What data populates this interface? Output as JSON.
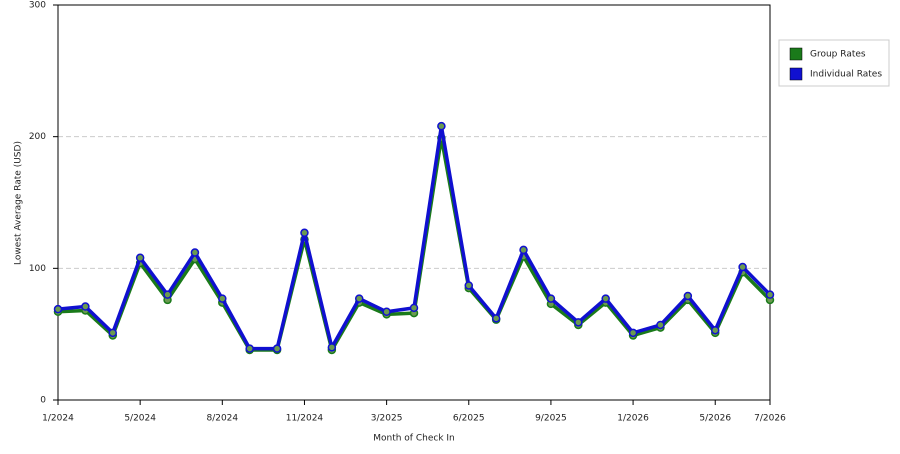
{
  "chart_data": {
    "type": "line",
    "x_label": "Month of Check In",
    "y_label": "Lowest Average Rate (USD)",
    "categories": [
      "1/2024",
      null,
      null,
      "5/2024",
      null,
      null,
      "8/2024",
      null,
      null,
      "11/2024",
      null,
      null,
      "3/2025",
      null,
      null,
      "6/2025",
      null,
      null,
      "9/2025",
      null,
      null,
      "1/2026",
      null,
      null,
      "5/2026",
      null,
      "7/2026"
    ],
    "series": [
      {
        "name": "Group Rates",
        "color": "#1a7a1a",
        "values": [
          67,
          68,
          49,
          104,
          76,
          107,
          74,
          38,
          38,
          122,
          38,
          74,
          65,
          66,
          199,
          85,
          61,
          109,
          73,
          57,
          74,
          49,
          55,
          76,
          51,
          97,
          76
        ]
      },
      {
        "name": "Individual Rates",
        "color": "#1010d0",
        "values": [
          69,
          71,
          51,
          108,
          80,
          112,
          77,
          39,
          39,
          127,
          40,
          77,
          67,
          70,
          208,
          87,
          62,
          114,
          77,
          59,
          77,
          51,
          57,
          79,
          53,
          101,
          80
        ]
      }
    ],
    "ylim": [
      0,
      300
    ],
    "yticks": [
      0,
      100,
      200,
      300
    ],
    "grid": true,
    "legend": "right"
  }
}
